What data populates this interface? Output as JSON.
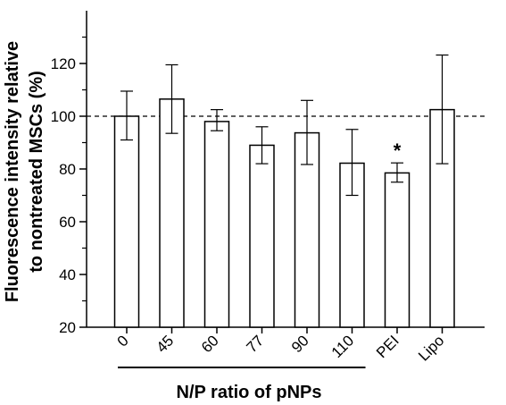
{
  "chart_data": {
    "type": "bar",
    "title": "",
    "categories": [
      "0",
      "45",
      "60",
      "77",
      "90",
      "110",
      "PEI",
      "Lipo"
    ],
    "values": [
      100,
      106.5,
      98,
      89,
      93.7,
      82.2,
      78.5,
      102.5
    ],
    "error_low": [
      91,
      93.5,
      94.5,
      82,
      81.7,
      70,
      75,
      82
    ],
    "error_high": [
      109.5,
      119.5,
      102.5,
      96,
      106,
      95,
      82.3,
      123.2
    ],
    "ylabel_line1": "Fluorescence intensity relative",
    "ylabel_line2": "to nontreated MSCs (%)",
    "xlabel": "N/P ratio of pNPs",
    "ylim": [
      20,
      140
    ],
    "yticks": [
      "20",
      "40",
      "60",
      "80",
      "100",
      "120"
    ],
    "reference_line": 100,
    "annotation": {
      "category": "PEI",
      "text": "*"
    },
    "grid": false,
    "colors": {
      "bar_fill": "#ffffff",
      "stroke": "#000000"
    }
  }
}
